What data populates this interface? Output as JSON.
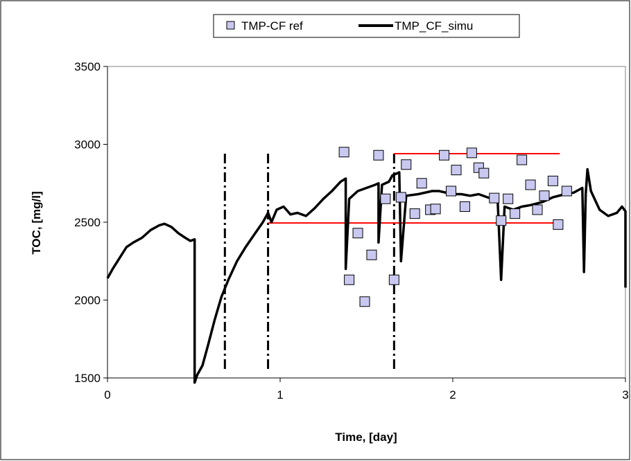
{
  "chart_data": {
    "type": "line",
    "xlabel": "Time, [day]",
    "ylabel": "TOC, [mg/l]",
    "xlim": [
      0,
      3
    ],
    "ylim": [
      1500,
      3500
    ],
    "x_ticks": [
      0,
      1,
      2,
      3
    ],
    "y_ticks": [
      1500,
      2000,
      2500,
      3000,
      3500
    ],
    "x_tick_labels": [
      "0",
      "1",
      "2",
      "3"
    ],
    "y_tick_labels": [
      "1500",
      "2000",
      "2500",
      "3000",
      "3500"
    ],
    "grid": "none",
    "legend_position": "top",
    "series": [
      {
        "name": "TMP-CF ref",
        "type": "scatter",
        "marker": "square",
        "color": "#c8c8f0",
        "points": [
          [
            1.37,
            2950
          ],
          [
            1.4,
            2130
          ],
          [
            1.45,
            2430
          ],
          [
            1.49,
            1990
          ],
          [
            1.53,
            2290
          ],
          [
            1.57,
            2930
          ],
          [
            1.61,
            2650
          ],
          [
            1.66,
            2130
          ],
          [
            1.7,
            2660
          ],
          [
            1.73,
            2870
          ],
          [
            1.78,
            2555
          ],
          [
            1.82,
            2750
          ],
          [
            1.87,
            2580
          ],
          [
            1.9,
            2585
          ],
          [
            1.95,
            2930
          ],
          [
            1.99,
            2700
          ],
          [
            2.02,
            2835
          ],
          [
            2.07,
            2600
          ],
          [
            2.11,
            2945
          ],
          [
            2.15,
            2850
          ],
          [
            2.18,
            2815
          ],
          [
            2.24,
            2655
          ],
          [
            2.28,
            2510
          ],
          [
            2.32,
            2650
          ],
          [
            2.36,
            2555
          ],
          [
            2.4,
            2900
          ],
          [
            2.45,
            2740
          ],
          [
            2.49,
            2580
          ],
          [
            2.53,
            2670
          ],
          [
            2.58,
            2765
          ],
          [
            2.61,
            2485
          ],
          [
            2.66,
            2700
          ]
        ]
      },
      {
        "name": "TMP_CF_simu",
        "type": "line",
        "color": "#000000",
        "points": [
          [
            0.0,
            2140
          ],
          [
            0.03,
            2200
          ],
          [
            0.07,
            2270
          ],
          [
            0.11,
            2340
          ],
          [
            0.15,
            2370
          ],
          [
            0.2,
            2400
          ],
          [
            0.25,
            2450
          ],
          [
            0.3,
            2480
          ],
          [
            0.33,
            2490
          ],
          [
            0.37,
            2470
          ],
          [
            0.41,
            2430
          ],
          [
            0.45,
            2400
          ],
          [
            0.48,
            2380
          ],
          [
            0.505,
            2390
          ],
          [
            0.505,
            1470
          ],
          [
            0.52,
            1520
          ],
          [
            0.55,
            1580
          ],
          [
            0.58,
            1700
          ],
          [
            0.62,
            1870
          ],
          [
            0.66,
            2020
          ],
          [
            0.7,
            2130
          ],
          [
            0.75,
            2250
          ],
          [
            0.8,
            2340
          ],
          [
            0.85,
            2420
          ],
          [
            0.9,
            2500
          ],
          [
            0.93,
            2560
          ],
          [
            0.95,
            2500
          ],
          [
            0.98,
            2580
          ],
          [
            1.02,
            2600
          ],
          [
            1.06,
            2550
          ],
          [
            1.1,
            2560
          ],
          [
            1.15,
            2540
          ],
          [
            1.2,
            2590
          ],
          [
            1.25,
            2650
          ],
          [
            1.3,
            2700
          ],
          [
            1.35,
            2760
          ],
          [
            1.38,
            2780
          ],
          [
            1.38,
            2200
          ],
          [
            1.4,
            2650
          ],
          [
            1.45,
            2700
          ],
          [
            1.5,
            2720
          ],
          [
            1.55,
            2740
          ],
          [
            1.57,
            2750
          ],
          [
            1.57,
            2370
          ],
          [
            1.59,
            2740
          ],
          [
            1.63,
            2760
          ],
          [
            1.65,
            2800
          ],
          [
            1.69,
            2820
          ],
          [
            1.7,
            2250
          ],
          [
            1.73,
            2670
          ],
          [
            1.8,
            2680
          ],
          [
            1.88,
            2700
          ],
          [
            1.92,
            2700
          ],
          [
            2.0,
            2680
          ],
          [
            2.05,
            2680
          ],
          [
            2.1,
            2670
          ],
          [
            2.15,
            2680
          ],
          [
            2.2,
            2660
          ],
          [
            2.26,
            2640
          ],
          [
            2.28,
            2130
          ],
          [
            2.3,
            2600
          ],
          [
            2.35,
            2580
          ],
          [
            2.4,
            2600
          ],
          [
            2.45,
            2610
          ],
          [
            2.52,
            2630
          ],
          [
            2.58,
            2660
          ],
          [
            2.65,
            2680
          ],
          [
            2.7,
            2690
          ],
          [
            2.75,
            2720
          ],
          [
            2.76,
            2180
          ],
          [
            2.77,
            2680
          ],
          [
            2.78,
            2840
          ],
          [
            2.8,
            2700
          ],
          [
            2.85,
            2580
          ],
          [
            2.9,
            2540
          ],
          [
            2.95,
            2560
          ],
          [
            2.98,
            2600
          ],
          [
            3.0,
            2570
          ],
          [
            3.0,
            2080
          ]
        ]
      }
    ],
    "annotations": {
      "vertical_dashdot_lines_x": [
        0.68,
        0.93,
        1.66
      ],
      "vertical_dashdot_range_y": [
        1540,
        2940
      ],
      "red_horizontal_lines": [
        {
          "y": 2940,
          "x_start": 1.66,
          "x_end": 2.62
        },
        {
          "y": 2495,
          "x_start": 0.93,
          "x_end": 2.62
        }
      ],
      "red_line_color": "#ff0000"
    }
  }
}
